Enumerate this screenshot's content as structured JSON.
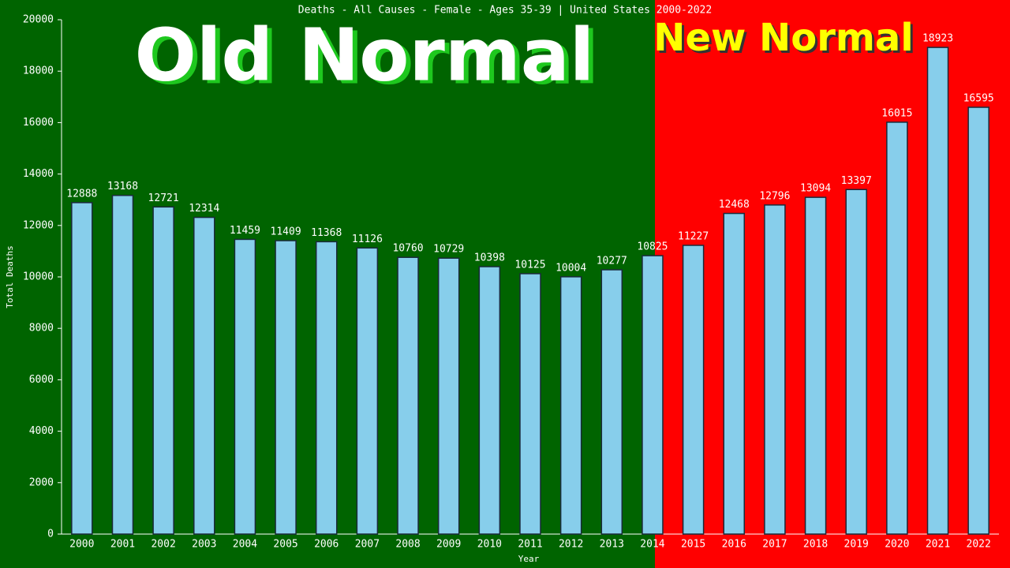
{
  "chart_data": {
    "type": "bar",
    "title": "Deaths - All Causes - Female - Ages 35-39 | United States 2000-2022",
    "annotations": [
      "Old Normal",
      "New Normal"
    ],
    "x_label": "Year",
    "y_label": "Total Deaths",
    "categories": [
      "2000",
      "2001",
      "2002",
      "2003",
      "2004",
      "2005",
      "2006",
      "2007",
      "2008",
      "2009",
      "2010",
      "2011",
      "2012",
      "2013",
      "2014",
      "2015",
      "2016",
      "2017",
      "2018",
      "2019",
      "2020",
      "2021",
      "2022"
    ],
    "values": [
      12888,
      13168,
      12721,
      12314,
      11459,
      11409,
      11368,
      11126,
      10760,
      10729,
      10398,
      10125,
      10004,
      10277,
      10825,
      11227,
      12468,
      12796,
      13094,
      13397,
      16015,
      18923,
      16595
    ],
    "color": "#87ceeb",
    "ylim": [
      0,
      20000
    ],
    "yticks": [
      0,
      2000,
      4000,
      6000,
      8000,
      10000,
      12000,
      14000,
      16000,
      18000,
      20000
    ]
  }
}
